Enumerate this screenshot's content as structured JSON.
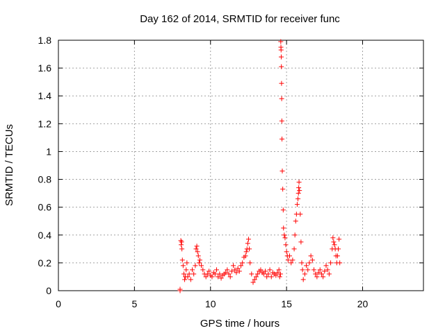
{
  "chart_data": {
    "type": "scatter",
    "title": "Day 162 of 2014, SRMTID for receiver func",
    "xlabel": "GPS time / hours",
    "ylabel": "SRMTID / TECUs",
    "xlim": [
      0,
      24
    ],
    "ylim": [
      0,
      1.8
    ],
    "x_ticks": [
      0,
      5,
      10,
      15,
      20
    ],
    "y_ticks": [
      0,
      0.2,
      0.4,
      0.6,
      0.8,
      1,
      1.2,
      1.4,
      1.6,
      1.8
    ],
    "x_tick_labels": [
      "0",
      "5",
      "10",
      "15",
      "20"
    ],
    "y_tick_labels": [
      "0",
      "0.2",
      "0.4",
      "0.6",
      "0.8",
      "1",
      "1.2",
      "1.4",
      "1.6",
      "1.8"
    ],
    "grid": true,
    "marker": "+",
    "color": "#ff0000",
    "series": [
      {
        "name": "SRMTID",
        "points": [
          [
            8.0,
            0.0
          ],
          [
            8.0,
            0.01
          ],
          [
            8.05,
            0.36
          ],
          [
            8.07,
            0.33
          ],
          [
            8.1,
            0.35
          ],
          [
            8.12,
            0.3
          ],
          [
            8.15,
            0.22
          ],
          [
            8.2,
            0.18
          ],
          [
            8.25,
            0.12
          ],
          [
            8.3,
            0.08
          ],
          [
            8.35,
            0.1
          ],
          [
            8.4,
            0.15
          ],
          [
            8.45,
            0.2
          ],
          [
            8.5,
            0.1
          ],
          [
            8.6,
            0.12
          ],
          [
            8.7,
            0.08
          ],
          [
            8.8,
            0.15
          ],
          [
            8.9,
            0.12
          ],
          [
            9.0,
            0.18
          ],
          [
            9.05,
            0.3
          ],
          [
            9.1,
            0.32
          ],
          [
            9.15,
            0.28
          ],
          [
            9.2,
            0.25
          ],
          [
            9.25,
            0.2
          ],
          [
            9.3,
            0.22
          ],
          [
            9.4,
            0.18
          ],
          [
            9.5,
            0.15
          ],
          [
            9.6,
            0.12
          ],
          [
            9.7,
            0.1
          ],
          [
            9.8,
            0.12
          ],
          [
            9.9,
            0.14
          ],
          [
            10.0,
            0.11
          ],
          [
            10.1,
            0.1
          ],
          [
            10.2,
            0.13
          ],
          [
            10.3,
            0.12
          ],
          [
            10.4,
            0.15
          ],
          [
            10.5,
            0.1
          ],
          [
            10.6,
            0.12
          ],
          [
            10.7,
            0.09
          ],
          [
            10.8,
            0.11
          ],
          [
            10.9,
            0.12
          ],
          [
            11.0,
            0.13
          ],
          [
            11.1,
            0.15
          ],
          [
            11.2,
            0.12
          ],
          [
            11.3,
            0.1
          ],
          [
            11.4,
            0.14
          ],
          [
            11.5,
            0.18
          ],
          [
            11.6,
            0.15
          ],
          [
            11.7,
            0.13
          ],
          [
            11.8,
            0.16
          ],
          [
            11.9,
            0.14
          ],
          [
            12.0,
            0.18
          ],
          [
            12.1,
            0.2
          ],
          [
            12.2,
            0.24
          ],
          [
            12.3,
            0.25
          ],
          [
            12.35,
            0.28
          ],
          [
            12.4,
            0.3
          ],
          [
            12.45,
            0.34
          ],
          [
            12.5,
            0.37
          ],
          [
            12.55,
            0.3
          ],
          [
            12.6,
            0.2
          ],
          [
            12.7,
            0.12
          ],
          [
            12.8,
            0.06
          ],
          [
            12.9,
            0.08
          ],
          [
            13.0,
            0.1
          ],
          [
            13.1,
            0.12
          ],
          [
            13.2,
            0.14
          ],
          [
            13.3,
            0.15
          ],
          [
            13.4,
            0.13
          ],
          [
            13.5,
            0.12
          ],
          [
            13.6,
            0.14
          ],
          [
            13.7,
            0.1
          ],
          [
            13.8,
            0.12
          ],
          [
            13.9,
            0.15
          ],
          [
            14.0,
            0.1
          ],
          [
            14.1,
            0.13
          ],
          [
            14.2,
            0.12
          ],
          [
            14.3,
            0.11
          ],
          [
            14.4,
            0.13
          ],
          [
            14.5,
            0.15
          ],
          [
            14.55,
            0.1
          ],
          [
            14.6,
            0.12
          ],
          [
            14.62,
            1.79
          ],
          [
            14.63,
            1.75
          ],
          [
            14.64,
            1.73
          ],
          [
            14.65,
            1.68
          ],
          [
            14.66,
            1.61
          ],
          [
            14.67,
            1.49
          ],
          [
            14.68,
            1.38
          ],
          [
            14.69,
            1.22
          ],
          [
            14.7,
            1.09
          ],
          [
            14.72,
            0.86
          ],
          [
            14.75,
            0.73
          ],
          [
            14.78,
            0.58
          ],
          [
            14.8,
            0.45
          ],
          [
            14.85,
            0.4
          ],
          [
            14.9,
            0.38
          ],
          [
            14.95,
            0.33
          ],
          [
            15.0,
            0.28
          ],
          [
            15.05,
            0.25
          ],
          [
            15.1,
            0.22
          ],
          [
            15.2,
            0.25
          ],
          [
            15.3,
            0.2
          ],
          [
            15.4,
            0.22
          ],
          [
            15.5,
            0.3
          ],
          [
            15.55,
            0.4
          ],
          [
            15.6,
            0.5
          ],
          [
            15.65,
            0.55
          ],
          [
            15.7,
            0.62
          ],
          [
            15.75,
            0.66
          ],
          [
            15.78,
            0.7
          ],
          [
            15.8,
            0.74
          ],
          [
            15.82,
            0.78
          ],
          [
            15.85,
            0.72
          ],
          [
            15.9,
            0.55
          ],
          [
            15.95,
            0.35
          ],
          [
            16.0,
            0.2
          ],
          [
            16.05,
            0.15
          ],
          [
            16.1,
            0.08
          ],
          [
            16.2,
            0.12
          ],
          [
            16.3,
            0.18
          ],
          [
            16.4,
            0.15
          ],
          [
            16.5,
            0.2
          ],
          [
            16.6,
            0.25
          ],
          [
            16.7,
            0.22
          ],
          [
            16.8,
            0.15
          ],
          [
            16.9,
            0.12
          ],
          [
            17.0,
            0.1
          ],
          [
            17.1,
            0.13
          ],
          [
            17.2,
            0.15
          ],
          [
            17.3,
            0.12
          ],
          [
            17.4,
            0.1
          ],
          [
            17.5,
            0.14
          ],
          [
            17.6,
            0.18
          ],
          [
            17.7,
            0.15
          ],
          [
            17.8,
            0.12
          ],
          [
            17.9,
            0.2
          ],
          [
            18.0,
            0.3
          ],
          [
            18.05,
            0.38
          ],
          [
            18.1,
            0.35
          ],
          [
            18.15,
            0.33
          ],
          [
            18.2,
            0.3
          ],
          [
            18.25,
            0.25
          ],
          [
            18.3,
            0.2
          ],
          [
            18.35,
            0.25
          ],
          [
            18.4,
            0.3
          ],
          [
            18.45,
            0.37
          ],
          [
            18.5,
            0.2
          ]
        ]
      }
    ]
  }
}
